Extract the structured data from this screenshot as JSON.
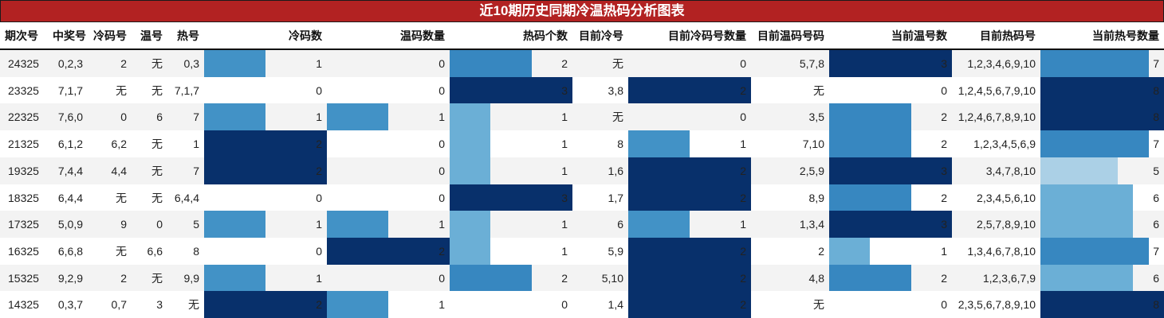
{
  "title": "近10期历史同期冷温热码分析图表",
  "columns": [
    {
      "key": "period",
      "label": "期次号"
    },
    {
      "key": "winning",
      "label": "中奖号"
    },
    {
      "key": "cold_nums",
      "label": "冷码号"
    },
    {
      "key": "warm_nums",
      "label": "温号"
    },
    {
      "key": "hot_nums",
      "label": "热号"
    },
    {
      "key": "cold_count",
      "label": "冷码数"
    },
    {
      "key": "warm_count",
      "label": "温码数量"
    },
    {
      "key": "hot_count",
      "label": "热码个数"
    },
    {
      "key": "cur_cold",
      "label": "目前冷号"
    },
    {
      "key": "cur_cold_count",
      "label": "目前冷码号数量"
    },
    {
      "key": "cur_warm",
      "label": "目前温码号码"
    },
    {
      "key": "cur_warm_count",
      "label": "当前温号数"
    },
    {
      "key": "cur_hot",
      "label": "目前热码号"
    },
    {
      "key": "cur_hot_count",
      "label": "当前热号数量"
    }
  ],
  "rows": [
    {
      "period": "24325",
      "winning": "0,2,3",
      "cold_nums": "2",
      "warm_nums": "无",
      "hot_nums": "0,3",
      "cold_count": "1",
      "warm_count": "0",
      "hot_count": "2",
      "cur_cold": "无",
      "cur_cold_count": "0",
      "cur_warm": "5,7,8",
      "cur_warm_count": "3",
      "cur_hot": "1,2,3,4,6,9,10",
      "cur_hot_count": "7"
    },
    {
      "period": "23325",
      "winning": "7,1,7",
      "cold_nums": "无",
      "warm_nums": "无",
      "hot_nums": "7,1,7",
      "cold_count": "0",
      "warm_count": "0",
      "hot_count": "3",
      "cur_cold": "3,8",
      "cur_cold_count": "2",
      "cur_warm": "无",
      "cur_warm_count": "0",
      "cur_hot": "1,2,4,5,6,7,9,10",
      "cur_hot_count": "8"
    },
    {
      "period": "22325",
      "winning": "7,6,0",
      "cold_nums": "0",
      "warm_nums": "6",
      "hot_nums": "7",
      "cold_count": "1",
      "warm_count": "1",
      "hot_count": "1",
      "cur_cold": "无",
      "cur_cold_count": "0",
      "cur_warm": "3,5",
      "cur_warm_count": "2",
      "cur_hot": "1,2,4,6,7,8,9,10",
      "cur_hot_count": "8"
    },
    {
      "period": "21325",
      "winning": "6,1,2",
      "cold_nums": "6,2",
      "warm_nums": "无",
      "hot_nums": "1",
      "cold_count": "2",
      "warm_count": "0",
      "hot_count": "1",
      "cur_cold": "8",
      "cur_cold_count": "1",
      "cur_warm": "7,10",
      "cur_warm_count": "2",
      "cur_hot": "1,2,3,4,5,6,9",
      "cur_hot_count": "7"
    },
    {
      "period": "19325",
      "winning": "7,4,4",
      "cold_nums": "4,4",
      "warm_nums": "无",
      "hot_nums": "7",
      "cold_count": "2",
      "warm_count": "0",
      "hot_count": "1",
      "cur_cold": "1,6",
      "cur_cold_count": "2",
      "cur_warm": "2,5,9",
      "cur_warm_count": "3",
      "cur_hot": "3,4,7,8,10",
      "cur_hot_count": "5"
    },
    {
      "period": "18325",
      "winning": "6,4,4",
      "cold_nums": "无",
      "warm_nums": "无",
      "hot_nums": "6,4,4",
      "cold_count": "0",
      "warm_count": "0",
      "hot_count": "3",
      "cur_cold": "1,7",
      "cur_cold_count": "2",
      "cur_warm": "8,9",
      "cur_warm_count": "2",
      "cur_hot": "2,3,4,5,6,10",
      "cur_hot_count": "6"
    },
    {
      "period": "17325",
      "winning": "5,0,9",
      "cold_nums": "9",
      "warm_nums": "0",
      "hot_nums": "5",
      "cold_count": "1",
      "warm_count": "1",
      "hot_count": "1",
      "cur_cold": "6",
      "cur_cold_count": "1",
      "cur_warm": "1,3,4",
      "cur_warm_count": "3",
      "cur_hot": "2,5,7,8,9,10",
      "cur_hot_count": "6"
    },
    {
      "period": "16325",
      "winning": "6,6,8",
      "cold_nums": "无",
      "warm_nums": "6,6",
      "hot_nums": "8",
      "cold_count": "0",
      "warm_count": "2",
      "hot_count": "1",
      "cur_cold": "5,9",
      "cur_cold_count": "2",
      "cur_warm": "2",
      "cur_warm_count": "1",
      "cur_hot": "1,3,4,6,7,8,10",
      "cur_hot_count": "7"
    },
    {
      "period": "15325",
      "winning": "9,2,9",
      "cold_nums": "2",
      "warm_nums": "无",
      "hot_nums": "9,9",
      "cold_count": "1",
      "warm_count": "0",
      "hot_count": "2",
      "cur_cold": "5,10",
      "cur_cold_count": "2",
      "cur_warm": "4,8",
      "cur_warm_count": "2",
      "cur_hot": "1,2,3,6,7,9",
      "cur_hot_count": "6"
    },
    {
      "period": "14325",
      "winning": "0,3,7",
      "cold_nums": "0,7",
      "warm_nums": "3",
      "hot_nums": "无",
      "cold_count": "2",
      "warm_count": "1",
      "hot_count": "0",
      "cur_cold": "1,4",
      "cur_cold_count": "2",
      "cur_warm": "无",
      "cur_warm_count": "0",
      "cur_hot": "2,3,5,6,7,8,9,10",
      "cur_hot_count": "8"
    }
  ],
  "colors": {
    "title_bg": "#b22222",
    "row_odd": "#f3f3f3",
    "row_even": "#ffffff",
    "scale": [
      "#abd0e6",
      "#6aaed6",
      "#3787c0",
      "#2070b4",
      "#4292c6",
      "#08519c",
      "#08306b"
    ]
  },
  "chart_data": {
    "type": "table",
    "title": "近10期历史同期冷温热码分析图表",
    "columns": [
      "期次号",
      "中奖号",
      "冷码号",
      "温号",
      "热号",
      "冷码数",
      "温码数量",
      "热码个数",
      "目前冷号",
      "目前冷码号数量",
      "目前温码号码",
      "当前温号数",
      "目前热码号",
      "当前热号数量"
    ],
    "bar_columns": {
      "冷码数": {
        "max": 2,
        "values": [
          1,
          0,
          1,
          2,
          2,
          0,
          1,
          0,
          1,
          2
        ]
      },
      "温码数量": {
        "max": 2,
        "values": [
          0,
          0,
          1,
          0,
          0,
          0,
          1,
          2,
          0,
          1
        ]
      },
      "热码个数": {
        "max": 3,
        "values": [
          2,
          3,
          1,
          1,
          1,
          3,
          1,
          1,
          2,
          0
        ]
      },
      "目前冷码号数量": {
        "max": 2,
        "values": [
          0,
          2,
          0,
          1,
          2,
          2,
          1,
          2,
          2,
          2
        ]
      },
      "当前温号数": {
        "max": 3,
        "values": [
          3,
          0,
          2,
          2,
          3,
          2,
          3,
          1,
          2,
          0
        ]
      },
      "当前热号数量": {
        "max": 8,
        "values": [
          7,
          8,
          8,
          7,
          5,
          6,
          6,
          7,
          6,
          8
        ]
      }
    },
    "categories": [
      "24325",
      "23325",
      "22325",
      "21325",
      "19325",
      "18325",
      "17325",
      "16325",
      "15325",
      "14325"
    ]
  }
}
